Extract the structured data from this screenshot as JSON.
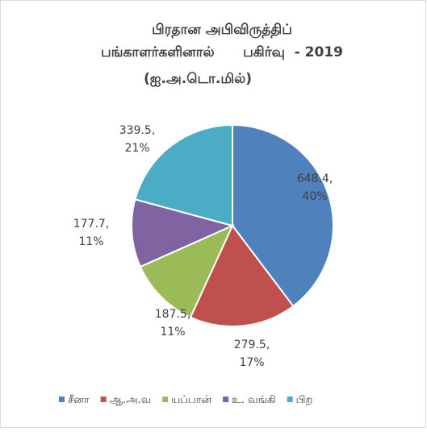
{
  "chart_data": {
    "type": "pie",
    "title": [
      "பிரதான அபிவிருத்திப்",
      "பங்காளர்களினால்      பகிர்வு  - 2019",
      "(ஐ.அ.டொ.மில்)"
    ],
    "categories": [
      "சீனா",
      "ஆ.அ.வ",
      "யப்பான்",
      "உ. வங்கி",
      "பிற"
    ],
    "values": [
      648.4,
      279.5,
      187.5,
      177.7,
      339.5
    ],
    "value_labels": [
      [
        "648.4,",
        "40%"
      ],
      [
        "279.5,",
        "17%"
      ],
      [
        "187.5,",
        "11%"
      ],
      [
        "177.7,",
        "11%"
      ],
      [
        "339.5,",
        "21%"
      ]
    ],
    "colors": [
      "#4f81bd",
      "#c0504d",
      "#9bbb59",
      "#8064a2",
      "#4bacc6"
    ],
    "legend": "bottom"
  }
}
